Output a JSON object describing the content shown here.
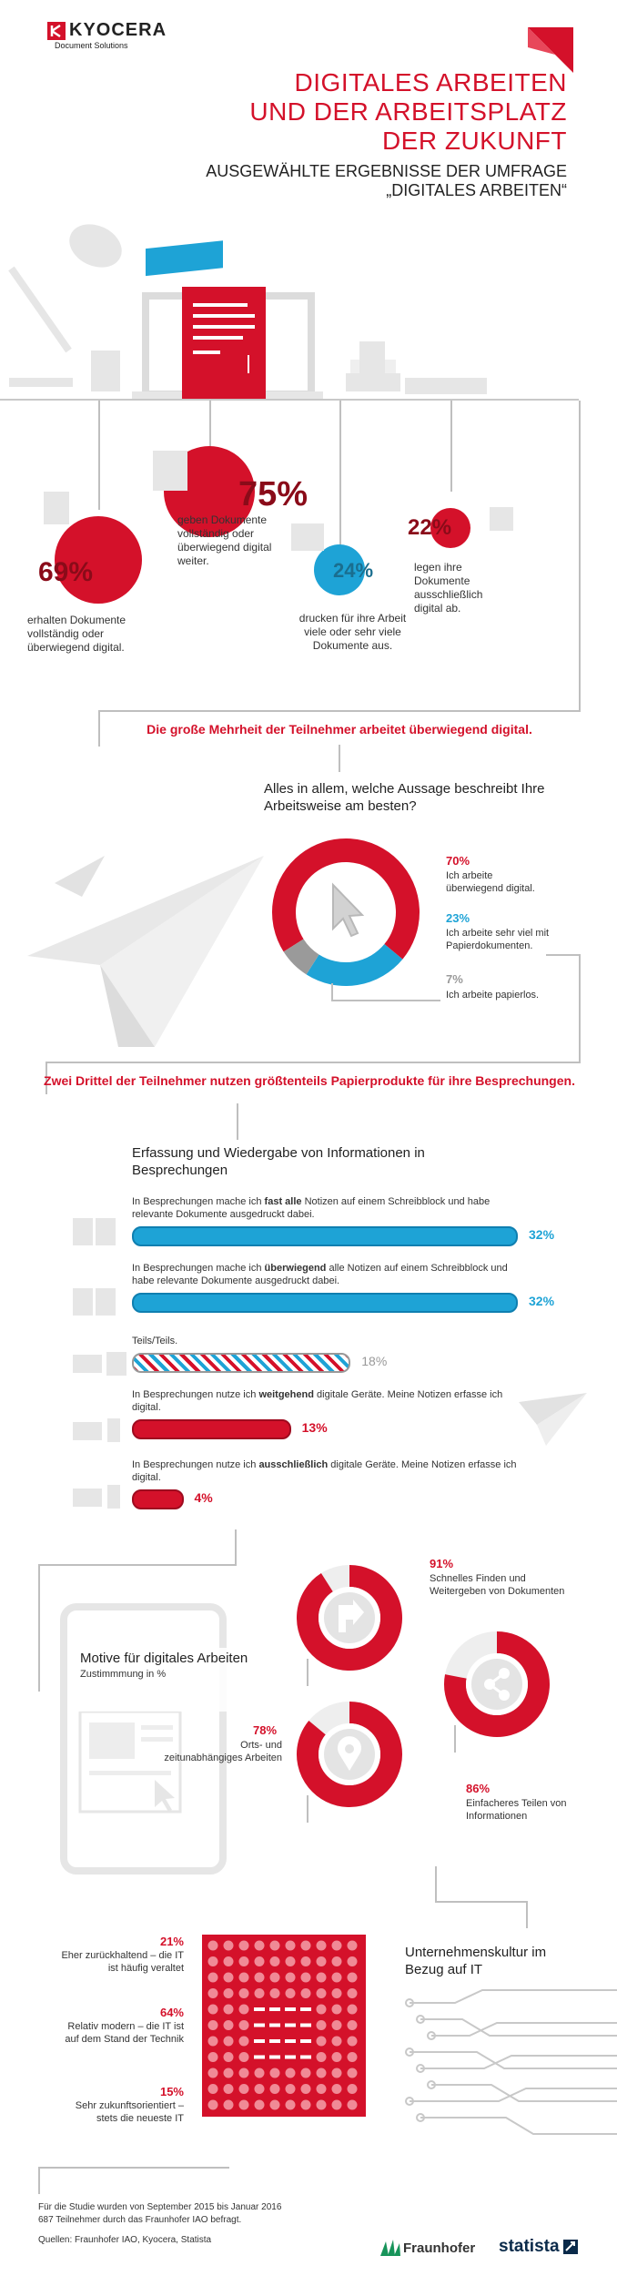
{
  "header": {
    "brand": "KYOCERA",
    "brand_sub": "Document Solutions",
    "title_lines": [
      "DIGITALES ARBEITEN",
      "UND DER ARBEITSPLATZ",
      "DER ZUKUNFT"
    ],
    "subtitle_lines": [
      "AUSGEWÄHLTE ERGEBNISSE DER UMFRAGE",
      "„DIGITALES ARBEITEN“"
    ]
  },
  "section1": {
    "stats": [
      {
        "value": "69%",
        "text": "erhalten Dokumente vollständig oder überwiegend digital."
      },
      {
        "value": "75%",
        "text": "geben Dokumente vollständig oder überwiegend digital weiter."
      },
      {
        "value": "24%",
        "text": "drucken für ihre Arbeit viele oder sehr viele Dokumente aus."
      },
      {
        "value": "22%",
        "text": "legen ihre Dokumente ausschließlich digital ab."
      }
    ],
    "headline": "Die große Mehrheit der Teilnehmer arbeitet überwiegend digital."
  },
  "section2": {
    "question": "Alles in allem, welche Aussage beschreibt Ihre Arbeitsweise am besten?",
    "items": [
      {
        "value": "70%",
        "label": "Ich arbeite überwiegend digital.",
        "color": "#d4112a"
      },
      {
        "value": "23%",
        "label": "Ich arbeite sehr viel mit Papierdokumenten.",
        "color": "#1ea3d6"
      },
      {
        "value": "7%",
        "label": "Ich arbeite papierlos.",
        "color": "#9a9a9a"
      }
    ],
    "headline": "Zwei Drittel der Teilnehmer nutzen größtenteils Papierprodukte für ihre Besprechungen."
  },
  "section3": {
    "title": "Erfassung und Wiedergabe von Informationen in Besprechungen",
    "bars": [
      {
        "pre": "In Besprechungen mache ich ",
        "bold": "fast alle",
        "post": " Notizen auf einem Schreibblock und habe relevante Dokumente ausgedruckt dabei.",
        "value": "32%",
        "fraction": 0.32,
        "style": "blue"
      },
      {
        "pre": "In Besprechungen mache ich ",
        "bold": "überwiegend",
        "post": " alle Notizen auf einem Schreibblock und habe relevante Dokumente ausgedruckt dabei.",
        "value": "32%",
        "fraction": 0.32,
        "style": "blue"
      },
      {
        "pre": "Teils/Teils.",
        "bold": "",
        "post": "",
        "value": "18%",
        "fraction": 0.18,
        "style": "striped"
      },
      {
        "pre": "In Besprechungen nutze ich ",
        "bold": "weitgehend",
        "post": " digitale Geräte. Meine Notizen erfasse ich digital.",
        "value": "13%",
        "fraction": 0.13,
        "style": "red"
      },
      {
        "pre": "In Besprechungen nutze ich ",
        "bold": "ausschließlich",
        "post": " digitale Geräte. Meine Notizen erfasse ich digital.",
        "value": "4%",
        "fraction": 0.04,
        "style": "red"
      }
    ]
  },
  "section4": {
    "title": "Motive für digitales Arbeiten",
    "subtitle": "Zustimmmung in %",
    "items": [
      {
        "value": "91%",
        "label": "Schnelles Finden und Weitergeben von Dokumenten",
        "fraction": 0.91
      },
      {
        "value": "78%",
        "label": "Orts- und zeitunabhängiges Arbeiten",
        "fraction": 0.78
      },
      {
        "value": "86%",
        "label": "Einfacheres Teilen von Informationen",
        "fraction": 0.86
      }
    ]
  },
  "section5": {
    "title": "Unternehmenskultur im Bezug auf IT",
    "items": [
      {
        "value": "21%",
        "label": "Eher zurückhaltend – die IT ist häufig veraltet"
      },
      {
        "value": "64%",
        "label": "Relativ modern – die IT ist auf dem Stand der Technik"
      },
      {
        "value": "15%",
        "label": "Sehr zukunftsorientiert – stets die neueste IT"
      }
    ]
  },
  "footer": {
    "note1": "Für die Studie wurden von September 2015 bis Januar 2016",
    "note2": "687 Teilnehmer durch das Fraunhofer IAO befragt.",
    "sources": "Quellen: Fraunhofer IAO, Kyocera, Statista",
    "logo1": "Fraunhofer",
    "logo2": "statista"
  }
}
